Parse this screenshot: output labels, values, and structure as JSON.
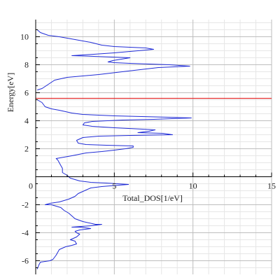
{
  "chart_data": {
    "type": "line",
    "title": "",
    "xlabel": "Total_DOS[1/eV]",
    "ylabel": "Energy[eV]",
    "xlim": [
      0,
      15
    ],
    "ylim": [
      -6.6,
      11.3
    ],
    "x_ticks": [
      0,
      5,
      10,
      15
    ],
    "y_ticks": [
      -6,
      -4,
      -2,
      2,
      4,
      6,
      8,
      10
    ],
    "grid": true,
    "minor_grid": true,
    "colors": {
      "series": "#1f2bd6",
      "fermi_line": "#e53030",
      "grid_major": "#bdbdbd",
      "grid_minor": "#e6e6e6",
      "axis": "#000000"
    },
    "series": [
      {
        "points": [
          [
            0.1,
            -6.6
          ],
          [
            0.2,
            -6.3
          ],
          [
            0.3,
            -6.1
          ],
          [
            0.9,
            -6.0
          ],
          [
            1.1,
            -5.9
          ],
          [
            1.3,
            -5.6
          ],
          [
            1.5,
            -5.2
          ],
          [
            1.9,
            -5.0
          ],
          [
            2.3,
            -4.9
          ],
          [
            2.6,
            -4.8
          ],
          [
            2.5,
            -4.6
          ],
          [
            2.2,
            -4.5
          ],
          [
            2.6,
            -4.3
          ],
          [
            2.8,
            -4.1
          ],
          [
            2.6,
            -4.0
          ],
          [
            2.5,
            -3.9
          ],
          [
            2.8,
            -3.8
          ],
          [
            3.5,
            -3.7
          ],
          [
            2.8,
            -3.6
          ],
          [
            2.3,
            -3.6
          ],
          [
            3.5,
            -3.5
          ],
          [
            4.2,
            -3.4
          ],
          [
            3.8,
            -3.4
          ],
          [
            3.0,
            -3.2
          ],
          [
            2.5,
            -3.0
          ],
          [
            2.3,
            -2.8
          ],
          [
            2.1,
            -2.6
          ],
          [
            1.8,
            -2.4
          ],
          [
            1.6,
            -2.2
          ],
          [
            1.3,
            -2.1
          ],
          [
            1.0,
            -2.0
          ],
          [
            0.6,
            -2.0
          ],
          [
            0.9,
            -1.9
          ],
          [
            1.5,
            -1.8
          ],
          [
            2.1,
            -1.6
          ],
          [
            2.5,
            -1.4
          ],
          [
            2.7,
            -1.2
          ],
          [
            3.1,
            -1.0
          ],
          [
            3.5,
            -0.8
          ],
          [
            4.2,
            -0.7
          ],
          [
            5.3,
            -0.6
          ],
          [
            5.9,
            -0.55
          ],
          [
            5.2,
            -0.5
          ],
          [
            4.5,
            -0.45
          ],
          [
            3.5,
            -0.4
          ],
          [
            2.8,
            -0.3
          ],
          [
            2.2,
            -0.1
          ],
          [
            2.0,
            0.1
          ],
          [
            1.7,
            0.3
          ],
          [
            1.7,
            0.6
          ],
          [
            1.6,
            0.8
          ],
          [
            1.5,
            1.0
          ],
          [
            1.4,
            1.2
          ],
          [
            1.3,
            1.3
          ],
          [
            1.8,
            1.4
          ],
          [
            2.3,
            1.5
          ],
          [
            3.2,
            1.7
          ],
          [
            4.2,
            1.8
          ],
          [
            5.0,
            1.9
          ],
          [
            5.7,
            2.0
          ],
          [
            6.2,
            2.1
          ],
          [
            6.2,
            2.2
          ],
          [
            4.5,
            2.25
          ],
          [
            3.2,
            2.3
          ],
          [
            2.7,
            2.4
          ],
          [
            2.6,
            2.6
          ],
          [
            3.0,
            2.8
          ],
          [
            4.0,
            2.9
          ],
          [
            6.0,
            2.95
          ],
          [
            8.7,
            3.0
          ],
          [
            8.1,
            3.1
          ],
          [
            6.5,
            3.15
          ],
          [
            7.2,
            3.25
          ],
          [
            7.6,
            3.35
          ],
          [
            6.8,
            3.4
          ],
          [
            5.0,
            3.5
          ],
          [
            3.6,
            3.6
          ],
          [
            3.0,
            3.7
          ],
          [
            3.1,
            3.85
          ],
          [
            3.6,
            3.95
          ],
          [
            5.5,
            4.05
          ],
          [
            7.5,
            4.1
          ],
          [
            9.9,
            4.2
          ],
          [
            8.5,
            4.25
          ],
          [
            5.0,
            4.35
          ],
          [
            3.0,
            4.45
          ],
          [
            2.3,
            4.55
          ],
          [
            1.5,
            4.75
          ],
          [
            1.0,
            4.85
          ],
          [
            0.6,
            5.0
          ],
          [
            0.4,
            5.3
          ],
          [
            0.1,
            5.5
          ]
        ]
      },
      {
        "points": [
          [
            0.1,
            6.2
          ],
          [
            0.4,
            6.3
          ],
          [
            0.8,
            6.6
          ],
          [
            1.2,
            6.9
          ],
          [
            2.0,
            7.1
          ],
          [
            4.0,
            7.3
          ],
          [
            5.5,
            7.5
          ],
          [
            7.8,
            7.8
          ],
          [
            9.8,
            7.9
          ],
          [
            8.5,
            8.0
          ],
          [
            6.0,
            8.1
          ],
          [
            5.0,
            8.15
          ],
          [
            4.6,
            8.2
          ],
          [
            4.9,
            8.3
          ],
          [
            6.0,
            8.5
          ],
          [
            3.7,
            8.6
          ],
          [
            2.3,
            8.65
          ],
          [
            3.7,
            8.75
          ],
          [
            5.0,
            8.85
          ],
          [
            7.5,
            9.1
          ],
          [
            7.0,
            9.2
          ],
          [
            5.0,
            9.3
          ],
          [
            4.2,
            9.4
          ],
          [
            3.5,
            9.6
          ],
          [
            2.5,
            9.8
          ],
          [
            1.5,
            10.0
          ],
          [
            0.8,
            10.1
          ],
          [
            0.3,
            10.3
          ],
          [
            0.1,
            10.5
          ]
        ]
      }
    ],
    "fermi_level": 5.6
  }
}
